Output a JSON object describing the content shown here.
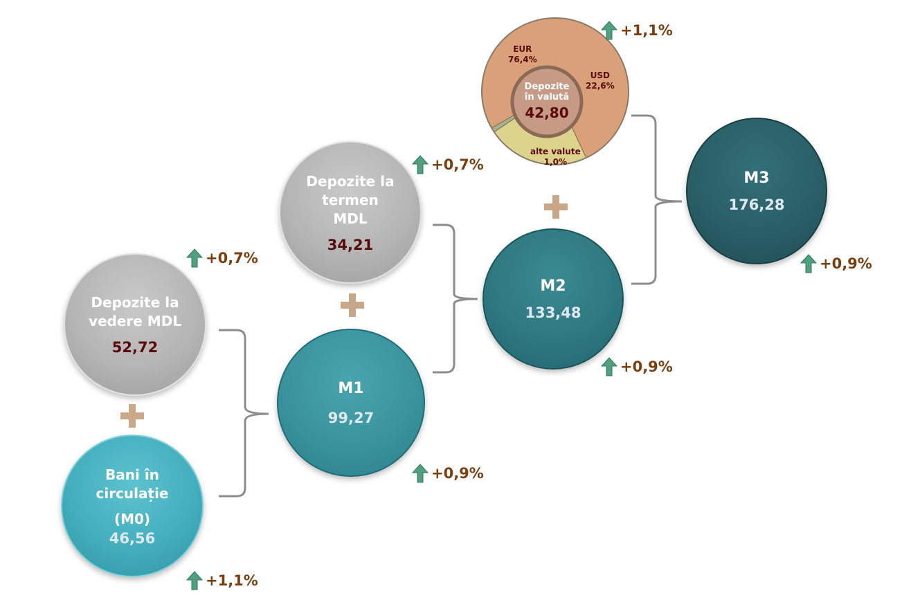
{
  "nodes": {
    "depozite_vedere": {
      "label_line1": "Depozite la",
      "label_line2": "vedere MDL",
      "value": "52,72",
      "growth": "+0,7%"
    },
    "bani_circulatie": {
      "label_line1": "Bani în",
      "label_line2": "circulație",
      "label_line3": "(M0)",
      "value": "46,56",
      "growth": "+1,1%"
    },
    "m1": {
      "label": "M1",
      "value": "99,27",
      "growth": "+0,9%"
    },
    "depozite_termen": {
      "label_line1": "Depozite la",
      "label_line2": "termen",
      "label_line3": "MDL",
      "value": "34,21",
      "growth": "+0,7%"
    },
    "m2": {
      "label": "M2",
      "value": "133,48",
      "growth": "+0,9%"
    },
    "depozite_valuta": {
      "label_line1": "Depozite",
      "label_line2": "în valută",
      "value": "42,80",
      "growth": "+1,1%",
      "slices": [
        {
          "name": "EUR",
          "percent_label": "76,4%",
          "percent": 76.4,
          "color": "#d9a07a"
        },
        {
          "name": "USD",
          "percent_label": "22,6%",
          "percent": 22.6,
          "color": "#dcd38c"
        },
        {
          "name": "alte valute",
          "percent_label": "1,0%",
          "percent": 1.0,
          "color": "#a8b08c"
        }
      ]
    },
    "m3": {
      "label": "M3",
      "value": "176,28",
      "growth": "+0,9%"
    }
  },
  "colors": {
    "growth_text": "#7a3e10",
    "arrow": "#4f9f80",
    "value_dark": "#5a0a0a",
    "plus": "#c9a88a",
    "bracket": "#8c8c8c"
  },
  "icons": {
    "growth": "up-arrow-icon",
    "plus": "plus-icon"
  }
}
